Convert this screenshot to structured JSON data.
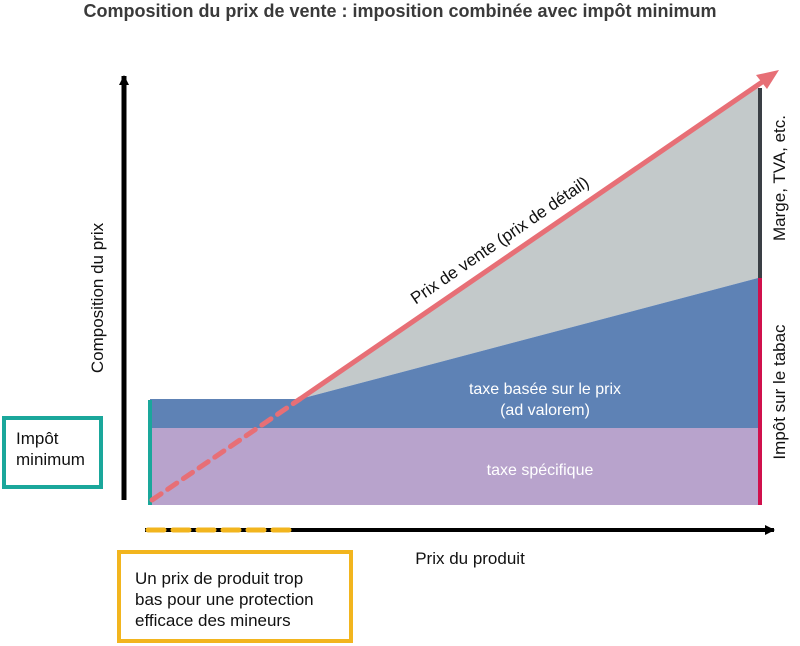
{
  "title": "Composition du prix de vente : imposition combinée avec impôt minimum",
  "axes": {
    "y_label": "Composition du prix",
    "x_label": "Prix du produit"
  },
  "labels": {
    "retail_price_line": "Prix de vente (prix de détail)",
    "ad_valorem_line1": "taxe basée sur le prix",
    "ad_valorem_line2": "(ad valorem)",
    "specific_tax": "taxe spécifique",
    "margin": "Marge, TVA, etc.",
    "tobacco_tax": "Impôt sur le tabac"
  },
  "minimum_tax_box": {
    "line1": "Impôt",
    "line2": "minimum"
  },
  "low_price_box": {
    "line1": "Un prix de produit trop",
    "line2": "bas pour une protection",
    "line3": "efficace des mineurs"
  },
  "colors": {
    "specific_tax": "#b8a3cc",
    "ad_valorem": "#5e82b5",
    "margin": "#c3c9ca",
    "retail_line": "#e76f76",
    "axis": "#000000",
    "minimum_marker": "#1aa79b",
    "low_price_marker": "#f2b51e",
    "tobacco_bracket": "#d0104c",
    "margin_bracket": "#3a3f45"
  }
}
